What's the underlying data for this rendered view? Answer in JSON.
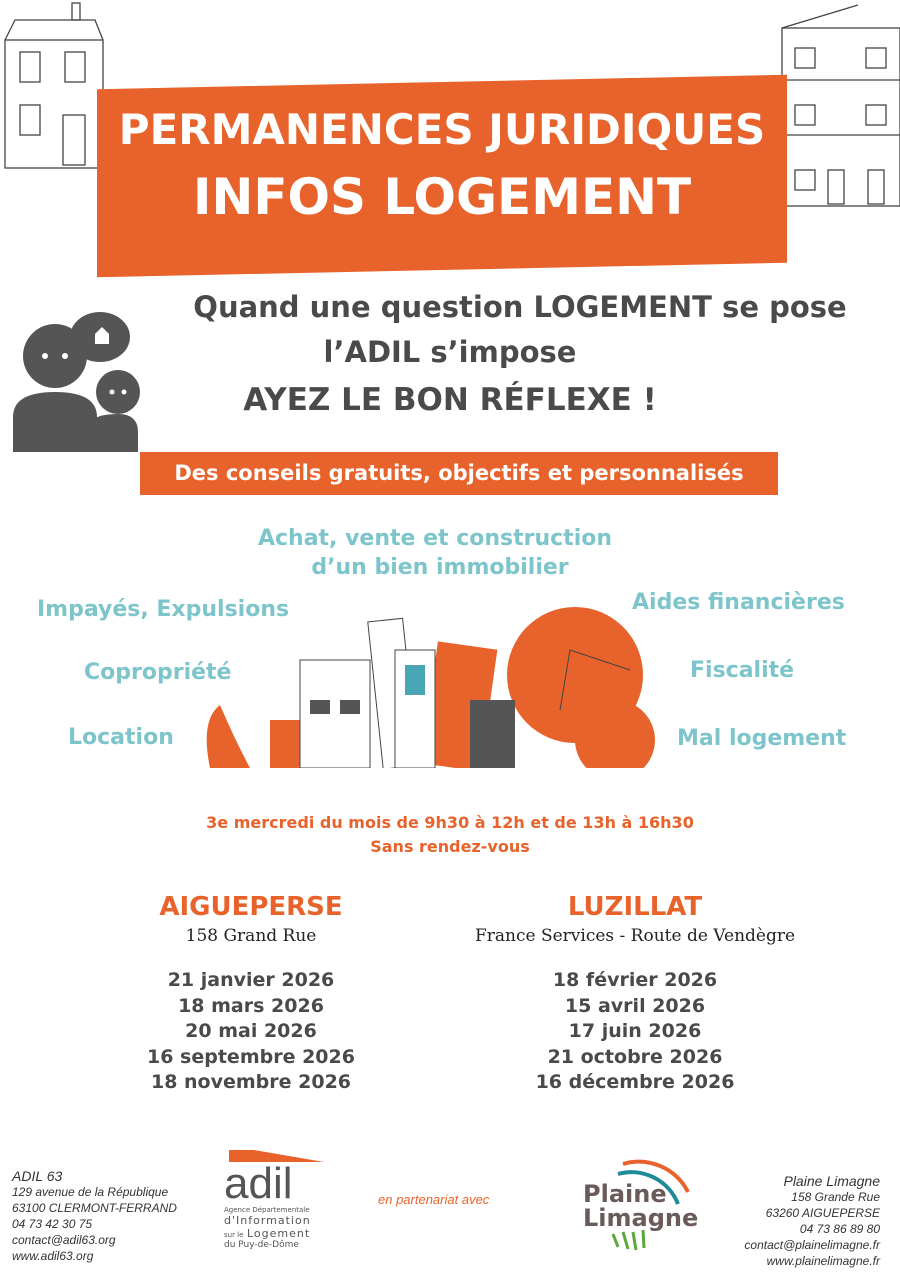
{
  "header": {
    "line1": "PERMANENCES JURIDIQUES",
    "line2": "INFOS LOGEMENT"
  },
  "headline": {
    "line1": "Quand une question LOGEMENT se pose",
    "line2": "l’ADIL s’impose",
    "line3": "AYEZ LE BON RÉFLEXE !"
  },
  "tagline": "Des conseils gratuits, objectifs et personnalisés",
  "topics": {
    "top": "Achat, vente et construction",
    "top2": "d’un bien immobilier",
    "left": [
      "Impayés, Expulsions",
      "Copropriété",
      "Location"
    ],
    "right": [
      "Aides financières",
      "Fiscalité",
      "Mal logement"
    ]
  },
  "schedule": {
    "line1": "3e mercredi du mois de 9h30 à 12h et de 13h à 16h30",
    "line2": "Sans rendez-vous"
  },
  "locations": [
    {
      "city": "AIGUEPERSE",
      "address": "158 Grand Rue",
      "dates": [
        "21 janvier 2026",
        "18 mars 2026",
        "20 mai 2026",
        "16 septembre 2026",
        "18 novembre 2026"
      ]
    },
    {
      "city": "LUZILLAT",
      "address": "France Services - Route de Vendègre",
      "dates": [
        "18 février 2026",
        "15 avril 2026",
        "17 juin 2026",
        "21 octobre 2026",
        "16 décembre 2026"
      ]
    }
  ],
  "footer": {
    "adil": [
      "ADIL 63",
      "129 avenue de la République",
      "63100 CLERMONT-FERRAND",
      "04 73 42 30 75",
      "contact@adil63.org",
      "www.adil63.org"
    ],
    "adil_logo": {
      "word": "adil",
      "sub1": "Agence Départementale",
      "sub2": "d'Information",
      "sub3a": "sur le",
      "sub3b": "Logement",
      "sub4": "du Puy-de-Dôme"
    },
    "partner": "en partenariat avec",
    "pl_logo": {
      "l1": "Plaine",
      "l2": "Limagne"
    },
    "plaine": [
      "Plaine Limagne",
      "158 Grande Rue",
      "63260 AIGUEPERSE",
      "04 73 86 89 80",
      "contact@plainelimagne.fr",
      "www.plainelimagne.fr"
    ]
  },
  "colors": {
    "orange": "#e8632b",
    "teal": "#7ec5cb",
    "gray": "#4a4a4a"
  }
}
